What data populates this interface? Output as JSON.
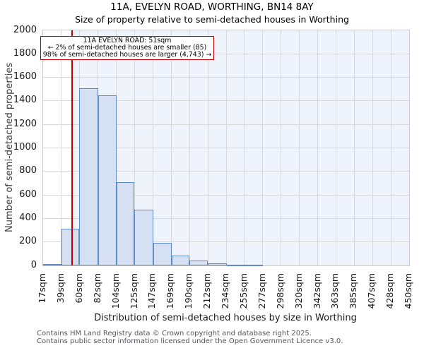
{
  "title": "11A, EVELYN ROAD, WORTHING, BN14 8AY",
  "subtitle": "Size of property relative to semi-detached houses in Worthing",
  "annotation": {
    "lines": [
      "11A EVELYN ROAD: 51sqm",
      "← 2% of semi-detached houses are smaller (85)",
      "98% of semi-detached houses are larger (4,743) →"
    ]
  },
  "footer": {
    "lines": [
      "Contains HM Land Registry data © Crown copyright and database right 2025.",
      "Contains public sector information licensed under the Open Government Licence v3.0."
    ]
  },
  "chart_data": {
    "type": "bar",
    "title": "11A, EVELYN ROAD, WORTHING, BN14 8AY",
    "subtitle": "Size of property relative to semi-detached houses in Worthing",
    "xlabel": "Distribution of semi-detached houses by size in Worthing",
    "ylabel": "Number of semi-detached properties",
    "ylim": [
      0,
      2000
    ],
    "ytick_step": 200,
    "grid": true,
    "legend": "none",
    "x_range_sqm": [
      17,
      450
    ],
    "x_tick_labels": [
      "17sqm",
      "39sqm",
      "60sqm",
      "82sqm",
      "104sqm",
      "125sqm",
      "147sqm",
      "169sqm",
      "190sqm",
      "212sqm",
      "234sqm",
      "255sqm",
      "277sqm",
      "298sqm",
      "320sqm",
      "342sqm",
      "363sqm",
      "385sqm",
      "407sqm",
      "428sqm",
      "450sqm"
    ],
    "bin_edges_sqm": [
      17,
      39,
      60,
      82,
      104,
      125,
      147,
      169,
      190,
      212,
      234,
      255,
      277
    ],
    "counts": [
      15,
      315,
      1510,
      1450,
      710,
      475,
      190,
      85,
      45,
      20,
      5,
      5
    ],
    "marker": {
      "value_sqm": 51,
      "label": "11A EVELYN ROAD: 51sqm"
    },
    "colors": {
      "bar_fill": "#d5e0f2",
      "bar_stroke": "#5f8cc8",
      "marker_line": "#c00000",
      "shade_fill": "#eff3fb",
      "grid": "#d8d8d8"
    }
  }
}
